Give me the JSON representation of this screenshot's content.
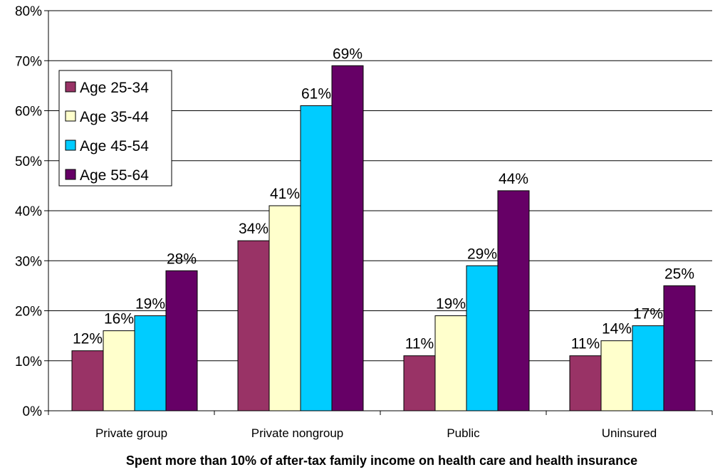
{
  "chart_data": {
    "type": "bar",
    "categories": [
      "Private group",
      "Private nongroup",
      "Public",
      "Uninsured"
    ],
    "series": [
      {
        "name": "Age 25-34",
        "color": "#993366",
        "values": [
          12,
          34,
          11,
          11
        ],
        "labels": [
          "12%",
          "34%",
          "11%",
          "11%"
        ]
      },
      {
        "name": "Age 35-44",
        "color": "#FFFFCC",
        "values": [
          16,
          41,
          19,
          14
        ],
        "labels": [
          "16%",
          "41%",
          "19%",
          "14%"
        ]
      },
      {
        "name": "Age 45-54",
        "color": "#00CCFF",
        "values": [
          19,
          61,
          29,
          17
        ],
        "labels": [
          "19%",
          "61%",
          "29%",
          "17%"
        ]
      },
      {
        "name": "Age 55-64",
        "color": "#660066",
        "values": [
          28,
          69,
          44,
          25
        ],
        "labels": [
          "28%",
          "69%",
          "44%",
          "25%"
        ]
      }
    ],
    "y_ticks": [
      "0%",
      "10%",
      "20%",
      "30%",
      "40%",
      "50%",
      "60%",
      "70%",
      "80%"
    ],
    "ylim": [
      0,
      80
    ],
    "xlabel": "Spent more than 10% of after-tax family income on health care and health insurance",
    "ylabel": "",
    "title": "",
    "grid": true,
    "legend_position": "top-left"
  }
}
